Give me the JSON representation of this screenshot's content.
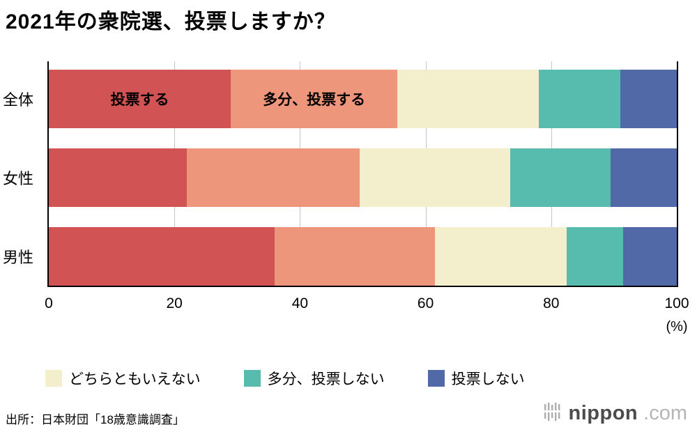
{
  "title": "2021年の衆院選、投票しますか？",
  "source": "出所：日本財団「18歳意識調査」",
  "logo": {
    "name": "nippon",
    "tld": ".com"
  },
  "chart_data": {
    "type": "bar",
    "stacked": true,
    "orientation": "horizontal",
    "categories": [
      "全体",
      "女性",
      "男性"
    ],
    "series": [
      {
        "name": "投票する",
        "color": "#d15353",
        "values": [
          29,
          22,
          36
        ]
      },
      {
        "name": "多分、投票する",
        "color": "#ee967c",
        "values": [
          26.5,
          27.5,
          25.5
        ]
      },
      {
        "name": "どちらともいえない",
        "color": "#f3eecb",
        "values": [
          22.5,
          24,
          21
        ]
      },
      {
        "name": "多分、投票しない",
        "color": "#57bcae",
        "values": [
          13,
          16,
          9
        ]
      },
      {
        "name": "投票しない",
        "color": "#5169a7",
        "values": [
          9,
          10.5,
          8.5
        ]
      }
    ],
    "xlim": [
      0,
      100
    ],
    "xticks": [
      0,
      20,
      40,
      60,
      80,
      100
    ],
    "x_unit": "(%)",
    "in_bar_labels": [
      {
        "row": 0,
        "series": 0,
        "text": "投票する"
      },
      {
        "row": 0,
        "series": 1,
        "text": "多分、投票する"
      }
    ],
    "legend_series": [
      2,
      3,
      4
    ],
    "grid": true,
    "legend_position": "bottom"
  }
}
